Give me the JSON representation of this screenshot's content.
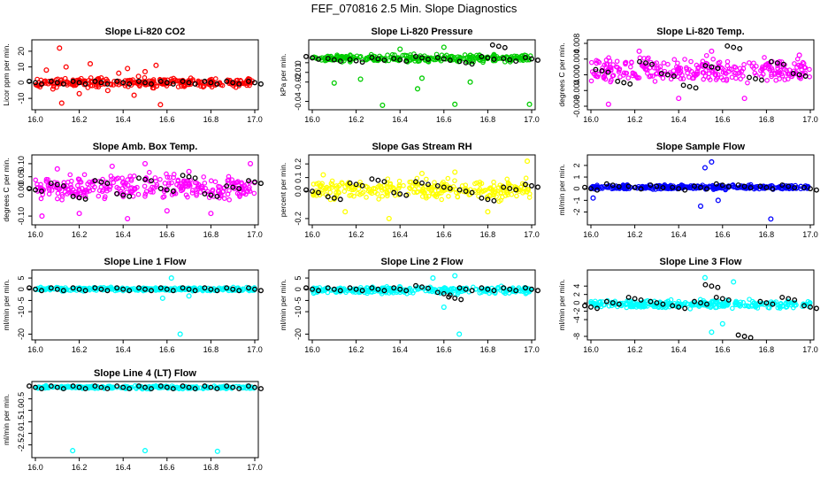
{
  "figure": {
    "title": "FEF_070816  2.5 Min. Slope Diagnostics"
  },
  "chart_data": [
    {
      "type": "scatter",
      "title": "Slope Li-820 CO2",
      "ylabel": "Licor ppm per min.",
      "color": "#ff0000",
      "xlim": [
        16.0,
        17.0
      ],
      "ylim": [
        -15,
        25
      ],
      "yticks": [
        "-10",
        "0",
        "10",
        "20"
      ],
      "ytick_values": [
        -10,
        0,
        10,
        20
      ],
      "xticks": [
        "16.0",
        "16.2",
        "16.4",
        "16.6",
        "16.8",
        "17.0"
      ],
      "x": [
        16.05,
        16.08,
        16.11,
        16.14,
        16.2,
        16.25,
        16.33,
        16.38,
        16.42,
        16.45,
        16.5,
        16.55,
        16.57,
        16.12,
        16.3,
        16.47
      ],
      "y": [
        8,
        -4,
        22,
        10,
        -7,
        12,
        -5,
        6,
        9,
        -8,
        7,
        11,
        -14,
        -13,
        3,
        4
      ],
      "black_x": [
        16.0,
        16.1,
        16.2,
        16.3,
        16.4,
        16.5,
        16.6,
        16.7,
        16.8,
        16.9,
        17.0
      ],
      "black_y": [
        0,
        0,
        0,
        0,
        0,
        0,
        0,
        0,
        0,
        0,
        0
      ]
    },
    {
      "type": "scatter",
      "title": "Slope Li-820 Pressure",
      "ylabel": "kPa per min.",
      "color": "#00cc00",
      "xlim": [
        16.0,
        17.0
      ],
      "ylim": [
        -0.045,
        0.02
      ],
      "yticks": [
        "-0.04",
        "-0.02",
        "-0.01",
        "0"
      ],
      "ytick_values": [
        -0.04,
        -0.02,
        -0.01,
        0.0
      ],
      "xticks": [
        "16.0",
        "16.2",
        "16.4",
        "16.6",
        "16.8",
        "17.0"
      ],
      "x": [
        16.1,
        16.22,
        16.32,
        16.48,
        16.5,
        16.65,
        16.72,
        16.99,
        16.6,
        16.4
      ],
      "y": [
        -0.021,
        -0.017,
        -0.044,
        -0.027,
        -0.016,
        -0.043,
        -0.02,
        -0.043,
        0.016,
        0.014
      ],
      "black_x": [
        16.0,
        16.1,
        16.2,
        16.3,
        16.4,
        16.5,
        16.6,
        16.7,
        16.8,
        16.85,
        16.9,
        17.0
      ],
      "black_y": [
        0.005,
        0.003,
        0.002,
        0.004,
        0.003,
        0.005,
        0.004,
        0.0,
        0.005,
        0.017,
        0.003,
        0.004
      ]
    },
    {
      "type": "scatter",
      "title": "Slope Li-820 Temp.",
      "ylabel": "degrees C per min.",
      "color": "#ff00ff",
      "xlim": [
        16.0,
        17.0
      ],
      "ylim": [
        -0.008,
        0.008
      ],
      "yticks": [
        "-0.008",
        "-0.004",
        "0.000",
        "0.004",
        "0.008"
      ],
      "ytick_values": [
        -0.008,
        -0.004,
        0.0,
        0.004,
        0.008
      ],
      "xticks": [
        "16.0",
        "16.2",
        "16.4",
        "16.6",
        "16.8",
        "17.0"
      ],
      "x": [
        16.08,
        16.22,
        16.4,
        16.55,
        16.7,
        16.95
      ],
      "y": [
        -0.0075,
        0.006,
        -0.006,
        0.006,
        -0.006,
        0.005
      ],
      "black_x": [
        16.05,
        16.15,
        16.25,
        16.35,
        16.45,
        16.55,
        16.65,
        16.75,
        16.85,
        16.95
      ],
      "black_y": [
        0.001,
        -0.002,
        0.003,
        0.0,
        -0.003,
        0.002,
        0.007,
        -0.001,
        0.003,
        0.0
      ]
    },
    {
      "type": "scatter",
      "title": "Slope Amb. Box Temp.",
      "ylabel": "degrees C per min.",
      "color": "#ff00ff",
      "xlim": [
        16.0,
        17.0
      ],
      "ylim": [
        -0.12,
        0.12
      ],
      "yticks": [
        "-0.10",
        "0.00",
        "0.05",
        "0.10"
      ],
      "ytick_values": [
        -0.1,
        0.0,
        0.05,
        0.1
      ],
      "xticks": [
        "16.0",
        "16.2",
        "16.4",
        "16.6",
        "16.8",
        "17.0"
      ],
      "x": [
        16.03,
        16.1,
        16.2,
        16.35,
        16.42,
        16.5,
        16.6,
        16.7,
        16.8,
        16.98
      ],
      "y": [
        -0.1,
        0.08,
        -0.09,
        0.09,
        -0.11,
        0.1,
        -0.08,
        0.07,
        -0.09,
        0.1
      ],
      "black_x": [
        16.0,
        16.1,
        16.2,
        16.3,
        16.4,
        16.5,
        16.6,
        16.7,
        16.8,
        16.9,
        17.0
      ],
      "black_y": [
        0.0,
        0.02,
        -0.03,
        0.03,
        -0.02,
        0.04,
        0.0,
        0.05,
        -0.02,
        0.01,
        0.03
      ]
    },
    {
      "type": "scatter",
      "title": "Slope Gas Stream RH",
      "ylabel": "percent per min.",
      "color": "#ffff00",
      "xlim": [
        16.0,
        17.0
      ],
      "ylim": [
        -0.22,
        0.24
      ],
      "yticks": [
        "-0.2",
        "0.0",
        "0.1",
        "0.2"
      ],
      "ytick_values": [
        -0.2,
        0.0,
        0.1,
        0.2
      ],
      "xticks": [
        "16.0",
        "16.2",
        "16.4",
        "16.6",
        "16.8",
        "17.0"
      ],
      "x": [
        16.05,
        16.15,
        16.35,
        16.5,
        16.65,
        16.8,
        16.98
      ],
      "y": [
        0.12,
        -0.15,
        -0.2,
        0.13,
        0.14,
        -0.15,
        0.22
      ],
      "black_x": [
        16.0,
        16.1,
        16.2,
        16.3,
        16.4,
        16.5,
        16.6,
        16.7,
        16.8,
        16.9,
        17.0
      ],
      "black_y": [
        0.0,
        -0.05,
        0.05,
        0.08,
        -0.02,
        0.06,
        0.03,
        0.0,
        -0.06,
        0.02,
        0.04
      ]
    },
    {
      "type": "scatter",
      "title": "Slope Sample Flow",
      "ylabel": "ml/min per min.",
      "color": "#0000ff",
      "xlim": [
        16.0,
        17.0
      ],
      "ylim": [
        -2.8,
        2.6
      ],
      "yticks": [
        "-2",
        "-1",
        "0",
        "1",
        "2"
      ],
      "ytick_values": [
        -2,
        -1,
        0,
        1,
        2
      ],
      "xticks": [
        "16.0",
        "16.2",
        "16.4",
        "16.6",
        "16.8",
        "17.0"
      ],
      "x": [
        16.52,
        16.55,
        16.5,
        16.58,
        16.82,
        16.01
      ],
      "y": [
        1.8,
        2.3,
        -1.5,
        -1.0,
        -2.6,
        -0.8
      ],
      "black_x": [
        16.0,
        16.1,
        16.2,
        16.3,
        16.4,
        16.5,
        16.6,
        16.7,
        16.8,
        16.9,
        17.0
      ],
      "black_y": [
        0.0,
        0.3,
        0.1,
        0.2,
        0.0,
        0.1,
        0.3,
        0.2,
        0.1,
        0.2,
        0.0
      ]
    },
    {
      "type": "scatter",
      "title": "Slope Line 1 Flow",
      "ylabel": "ml/min per min.",
      "color": "#00ffff",
      "xlim": [
        16.0,
        17.0
      ],
      "ylim": [
        -21,
        7
      ],
      "yticks": [
        "-20",
        "-10",
        "-5",
        "0",
        "5"
      ],
      "ytick_values": [
        -20,
        -10,
        -5,
        0,
        5
      ],
      "xticks": [
        "16.0",
        "16.2",
        "16.4",
        "16.6",
        "16.8",
        "17.0"
      ],
      "x": [
        16.66,
        16.62,
        16.58,
        16.7
      ],
      "y": [
        -20,
        5,
        -4,
        -3
      ],
      "black_x": [
        16.0,
        16.1,
        16.2,
        16.3,
        16.4,
        16.5,
        16.6,
        16.7,
        16.8,
        16.9,
        17.0
      ],
      "black_y": [
        0,
        0,
        0,
        0,
        0,
        0,
        0,
        0,
        0,
        0,
        0
      ]
    },
    {
      "type": "scatter",
      "title": "Slope Line 2 Flow",
      "ylabel": "ml/min per min.",
      "color": "#00ffff",
      "xlim": [
        16.0,
        17.0
      ],
      "ylim": [
        -21,
        7
      ],
      "yticks": [
        "-20",
        "-10",
        "-5",
        "0",
        "5"
      ],
      "ytick_values": [
        -20,
        -10,
        -5,
        0,
        5
      ],
      "xticks": [
        "16.0",
        "16.2",
        "16.4",
        "16.6",
        "16.8",
        "17.0"
      ],
      "x": [
        16.67,
        16.55,
        16.6,
        16.65
      ],
      "y": [
        -20,
        5,
        -8,
        6
      ],
      "black_x": [
        16.0,
        16.1,
        16.2,
        16.3,
        16.4,
        16.5,
        16.6,
        16.65,
        16.7,
        16.8,
        16.9,
        17.0
      ],
      "black_y": [
        0,
        0,
        0,
        0,
        0,
        1,
        -2,
        -4,
        0,
        0,
        0,
        0
      ]
    },
    {
      "type": "scatter",
      "title": "Slope Line 3 Flow",
      "ylabel": "ml/min per min.",
      "color": "#00ffff",
      "xlim": [
        16.0,
        17.0
      ],
      "ylim": [
        -8,
        7
      ],
      "yticks": [
        "-8",
        "-4",
        "-2",
        "0",
        "2",
        "4"
      ],
      "ytick_values": [
        -8,
        -4,
        -2,
        0,
        2,
        4
      ],
      "xticks": [
        "16.0",
        "16.2",
        "16.4",
        "16.6",
        "16.8",
        "17.0"
      ],
      "x": [
        16.55,
        16.52,
        16.6,
        16.65
      ],
      "y": [
        -7,
        6,
        -5,
        5
      ],
      "black_x": [
        16.0,
        16.1,
        16.2,
        16.3,
        16.4,
        16.5,
        16.55,
        16.6,
        16.7,
        16.8,
        16.9,
        17.0
      ],
      "black_y": [
        -1,
        0,
        1,
        0,
        -1,
        0,
        4,
        1,
        -8,
        0,
        1,
        -1
      ]
    },
    {
      "type": "scatter",
      "title": "Slope Line 4 (LT) Flow",
      "ylabel": "ml/min per min.",
      "color": "#00ffff",
      "xlim": [
        16.0,
        17.0
      ],
      "ylim": [
        -2.9,
        0.1
      ],
      "yticks": [
        "-2.5",
        "-2.0",
        "-1.5",
        "-1.0",
        "-0.5"
      ],
      "ytick_values": [
        -2.5,
        -2.0,
        -1.5,
        -1.0,
        -0.5
      ],
      "xticks": [
        "16.0",
        "16.2",
        "16.4",
        "16.6",
        "16.8",
        "17.0"
      ],
      "x": [
        16.17,
        16.5,
        16.83
      ],
      "y": [
        -2.75,
        -2.75,
        -2.78
      ],
      "black_x": [
        16.0,
        16.1,
        16.2,
        16.3,
        16.4,
        16.5,
        16.6,
        16.7,
        16.8,
        16.9,
        17.0
      ],
      "black_y": [
        0,
        0,
        0,
        0,
        0,
        0,
        0,
        0,
        0,
        0,
        0
      ]
    }
  ]
}
